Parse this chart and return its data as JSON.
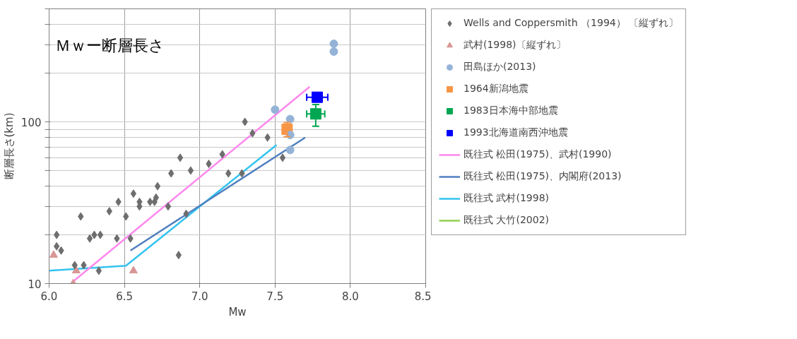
{
  "chart_data": {
    "type": "scatter",
    "title": "Ｍｗー断層長さ",
    "xlabel": "Mw",
    "ylabel": "断層長さ(km)",
    "log": "y",
    "grid": true,
    "legend": "right",
    "xlim": [
      6.0,
      8.5
    ],
    "ylim": [
      10,
      500
    ],
    "xticks": [
      {
        "value": 6.0,
        "label": "6.0"
      },
      {
        "value": 6.5,
        "label": "6.5"
      },
      {
        "value": 7.0,
        "label": "7.0"
      },
      {
        "value": 7.5,
        "label": "7.5"
      },
      {
        "value": 8.0,
        "label": "8.0"
      },
      {
        "value": 8.5,
        "label": "8.5"
      }
    ],
    "yticks": [
      10,
      {
        "value": 20,
        "label": null
      },
      {
        "value": 30,
        "label": null
      },
      {
        "value": 40,
        "label": null
      },
      {
        "value": 50,
        "label": null
      },
      {
        "value": 60,
        "label": null
      },
      {
        "value": 70,
        "label": null
      },
      {
        "value": 80,
        "label": null
      },
      {
        "value": 90,
        "label": null
      },
      100,
      {
        "value": 200,
        "label": null
      },
      {
        "value": 300,
        "label": null
      },
      {
        "value": 400,
        "label": null
      },
      {
        "value": 500,
        "label": null
      }
    ],
    "series": [
      {
        "name": "Wells and Coppersmith （1994） 〔縦ずれ〕",
        "marker": "diamond",
        "color": "#6e6e6e",
        "x": [
          6.05,
          6.05,
          6.08,
          6.21,
          6.17,
          6.23,
          6.27,
          6.3,
          6.34,
          6.33,
          6.4,
          6.45,
          6.46,
          6.51,
          6.54,
          6.56,
          6.6,
          6.6,
          6.67,
          6.7,
          6.71,
          6.72,
          6.79,
          6.81,
          6.86,
          6.87,
          6.91,
          6.94,
          7.06,
          7.15,
          7.19,
          7.28,
          7.3,
          7.35,
          7.45,
          7.55
        ],
        "values": [
          20,
          17,
          16,
          26,
          13,
          13,
          19,
          20,
          20,
          12,
          28,
          19,
          32,
          26,
          19,
          36,
          32,
          30,
          32,
          32,
          34,
          40,
          30,
          48,
          15,
          60,
          27,
          50,
          55,
          63,
          48,
          48,
          100,
          85,
          80,
          60
        ]
      },
      {
        "name": "武村(1998)〔縦ずれ〕",
        "marker": "triangle",
        "color": "#d99694",
        "x": [
          6.03,
          6.18,
          6.16,
          6.56
        ],
        "values": [
          15,
          12,
          10,
          12
        ]
      },
      {
        "name": "田島ほか(2013)",
        "marker": "circle",
        "color": "#95b3d7",
        "x": [
          7.5,
          7.6,
          7.6,
          7.6,
          7.89,
          7.89
        ],
        "values": [
          119,
          104,
          83,
          67,
          304,
          272
        ]
      },
      {
        "name": "1964新潟地震",
        "marker": "square",
        "color": "#f79646",
        "x": [
          7.58
        ],
        "values": [
          90
        ],
        "errors": [
          [
            81,
            99
          ]
        ]
      },
      {
        "name": "1983日本海中部地震",
        "marker": "square",
        "color": "#00a651",
        "x": [
          7.77
        ],
        "values": [
          112
        ],
        "errors": [
          [
            94,
            128
          ]
        ],
        "xerrors": [
          [
            7.71,
            7.83
          ]
        ]
      },
      {
        "name": "1993北海道南西沖地震",
        "marker": "square",
        "color": "#0000ff",
        "x": [
          7.78
        ],
        "values": [
          142
        ],
        "xerrors": [
          [
            7.71,
            7.85
          ]
        ]
      },
      {
        "name": "既往式 松田(1975)、武村(1990)",
        "type": "line",
        "color": "#ff88ee",
        "x": [
          6.16,
          7.73
        ],
        "values": [
          10.3,
          165
        ]
      },
      {
        "name": "既往式 松田(1975)、内閣府(2013)",
        "type": "line",
        "color": "#4f7fbf",
        "x": [
          6.54,
          7.7
        ],
        "values": [
          16,
          80
        ]
      },
      {
        "name": "既往式 武村(1998)",
        "type": "line",
        "color": "#33c3f0",
        "x": [
          6.0,
          6.51,
          7.51
        ],
        "values": [
          12,
          12.9,
          72
        ]
      },
      {
        "name": "既往式 大竹(2002)",
        "type": "line",
        "color": "#92d050"
      }
    ]
  }
}
